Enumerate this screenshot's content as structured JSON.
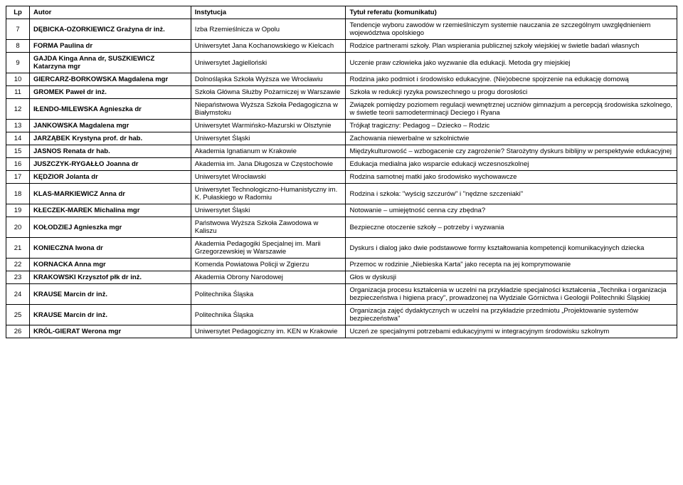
{
  "headers": {
    "lp": "Lp",
    "autor": "Autor",
    "instytucja": "Instytucja",
    "tytul": "Tytuł referatu (komunikatu)"
  },
  "rows": [
    {
      "lp": "7",
      "autor": "DĘBICKA-OZORKIEWICZ Grażyna dr inż.",
      "inst": "Izba Rzemieślnicza w Opolu",
      "tytul": "Tendencje wyboru zawodów w rzemieślniczym systemie nauczania ze szczególnym uwzględnieniem województwa opolskiego"
    },
    {
      "lp": "8",
      "autor": "FORMA Paulina dr",
      "inst": "Uniwersytet Jana Kochanowskiego w Kielcach",
      "tytul": "Rodzice partnerami szkoły. Plan wspierania publicznej szkoły wiejskiej w świetle badań własnych"
    },
    {
      "lp": "9",
      "autor": "GAJDA Kinga Anna dr, SUSZKIEWICZ Katarzyna mgr",
      "inst": "Uniwersytet Jagielloński",
      "tytul": "Uczenie praw człowieka jako wyzwanie dla edukacji. Metoda gry miejskiej"
    },
    {
      "lp": "10",
      "autor": "GIERCARZ-BORKOWSKA Magdalena mgr",
      "inst": "Dolnośląska Szkoła Wyższa we Wrocławiu",
      "tytul": "Rodzina jako podmiot i środowisko edukacyjne. (Nie)obecne spojrzenie na edukację domową"
    },
    {
      "lp": "11",
      "autor": "GROMEK Paweł dr inż.",
      "inst": "Szkoła Główna Służby Pożarniczej w Warszawie",
      "tytul": "Szkoła w redukcji ryzyka powszechnego u progu dorosłości"
    },
    {
      "lp": "12",
      "autor": "IŁENDO-MILEWSKA Agnieszka dr",
      "inst": "Niepaństwowa Wyższa Szkoła Pedagogiczna w Białymstoku",
      "tytul": "Związek pomiędzy poziomem regulacji wewnętrznej uczniów gimnazjum a percepcją środowiska szkolnego, w świetle teorii samodeterminacji Deciego i Ryana"
    },
    {
      "lp": "13",
      "autor": "JANKOWSKA Magdalena mgr",
      "inst": "Uniwersytet Warmińsko-Mazurski w Olsztynie",
      "tytul": "Trójkąt tragiczny: Pedagog – Dziecko – Rodzic"
    },
    {
      "lp": "14",
      "autor": "JARZĄBEK Krystyna prof. dr hab.",
      "inst": "Uniwersytet Śląski",
      "tytul": "Zachowania niewerbalne w szkolnictwie"
    },
    {
      "lp": "15",
      "autor": "JASNOS Renata dr hab.",
      "inst": "Akademia Ignatianum w Krakowie",
      "tytul": "Międzykulturowość – wzbogacenie czy zagrożenie? Starożytny dyskurs biblijny w perspektywie edukacyjnej"
    },
    {
      "lp": "16",
      "autor": "JUSZCZYK-RYGAŁŁO Joanna dr",
      "inst": "Akademia im. Jana Długosza w Częstochowie",
      "tytul": "Edukacja medialna jako wsparcie edukacji wczesnoszkolnej"
    },
    {
      "lp": "17",
      "autor": "KĘDZIOR Jolanta dr",
      "inst": "Uniwersytet Wrocławski",
      "tytul": "Rodzina samotnej matki jako środowisko wychowawcze"
    },
    {
      "lp": "18",
      "autor": "KLAS-MARKIEWICZ Anna dr",
      "inst": "Uniwersytet Technologiczno-Humanistyczny im. K. Pułaskiego w Radomiu",
      "tytul": "Rodzina i szkoła: \"wyścig szczurów\" i \"nędzne szczeniaki\""
    },
    {
      "lp": "19",
      "autor": "KŁECZEK-MAREK Michalina mgr",
      "inst": "Uniwersytet Śląski",
      "tytul": "Notowanie – umiejętność cenna czy zbędna?"
    },
    {
      "lp": "20",
      "autor": "KOŁODZIEJ Agnieszka mgr",
      "inst": "Państwowa Wyższa Szkoła Zawodowa w Kaliszu",
      "tytul": "Bezpieczne otoczenie szkoły – potrzeby i wyzwania"
    },
    {
      "lp": "21",
      "autor": "KONIECZNA Iwona dr",
      "inst": "Akademia Pedagogiki Specjalnej im. Marii Grzegorzewskiej w Warszawie",
      "tytul": "Dyskurs i dialog jako dwie podstawowe formy kształtowania kompetencji komunikacyjnych dziecka"
    },
    {
      "lp": "22",
      "autor": "KORNACKA Anna mgr",
      "inst": "Komenda Powiatowa Policji w Zgierzu",
      "tytul": "Przemoc w rodzinie „Niebieska Karta\" jako recepta na jej komprymowanie"
    },
    {
      "lp": "23",
      "autor": "KRAKOWSKI Krzysztof płk dr inż.",
      "inst": "Akademia Obrony Narodowej",
      "tytul": "Głos w dyskusji"
    },
    {
      "lp": "24",
      "autor": "KRAUSE Marcin dr inż.",
      "inst": "Politechnika Śląska",
      "tytul": "Organizacja procesu kształcenia w uczelni na przykładzie specjalności kształcenia „Technika i organizacja bezpieczeństwa i higiena pracy\", prowadzonej na Wydziale Górnictwa i Geologii Politechniki Śląskiej"
    },
    {
      "lp": "25",
      "autor": "KRAUSE Marcin dr inż.",
      "inst": "Politechnika Śląska",
      "tytul": "Organizacja zajęć dydaktycznych w uczelni na przykładzie przedmiotu „Projektowanie systemów bezpieczeństwa\""
    },
    {
      "lp": "26",
      "autor": "KRÓL-GIERAT Werona mgr",
      "inst": "Uniwersytet Pedagogiczny im. KEN w Krakowie",
      "tytul": "Uczeń ze specjalnymi potrzebami edukacyjnymi w integracyjnym środowisku szkolnym"
    }
  ]
}
